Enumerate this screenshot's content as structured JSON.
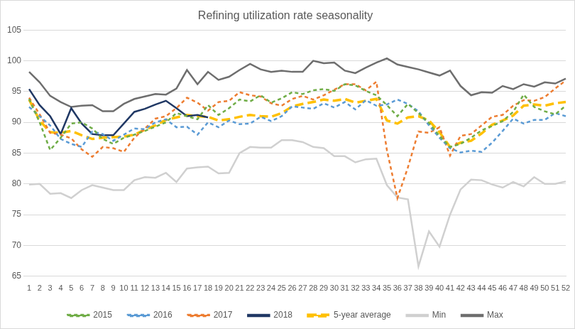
{
  "chart_data": {
    "type": "line",
    "title": "Refining utilization rate seasonality",
    "categories": [
      "1",
      "2",
      "3",
      "4",
      "5",
      "6",
      "7",
      "8",
      "9",
      "10",
      "11",
      "12",
      "13",
      "14",
      "15",
      "16",
      "17",
      "18",
      "19",
      "20",
      "21",
      "22",
      "23",
      "24",
      "25",
      "26",
      "27",
      "28",
      "29",
      "30",
      "31",
      "32",
      "33",
      "34",
      "35",
      "36",
      "37",
      "38",
      "39",
      "40",
      "41",
      "42",
      "43",
      "44",
      "45",
      "46",
      "47",
      "48",
      "49",
      "50",
      "51",
      "52"
    ],
    "ylim": [
      65,
      105
    ],
    "yticks": [
      65,
      70,
      75,
      80,
      85,
      90,
      95,
      100,
      105
    ],
    "grid": true,
    "legend": "bottom",
    "series": [
      {
        "name": "2015",
        "color": "#70ad47",
        "line_style": "dashed",
        "values": [
          93.8,
          90.0,
          85.5,
          87.5,
          89.8,
          90.0,
          89.0,
          87.3,
          86.5,
          87.5,
          88.0,
          88.6,
          89.3,
          90.0,
          91.5,
          91.0,
          90.5,
          92.8,
          91.2,
          92.3,
          93.7,
          93.4,
          94.4,
          93.2,
          93.9,
          94.9,
          94.6,
          95.2,
          95.4,
          95.1,
          96.2,
          96.0,
          95.1,
          94.4,
          92.8,
          91.0,
          93.0,
          91.5,
          89.9,
          87.8,
          86.0,
          86.5,
          87.5,
          88.7,
          89.4,
          90.2,
          91.7,
          94.5,
          92.5,
          91.8,
          91.3,
          92.7
        ]
      },
      {
        "name": "2016",
        "color": "#5b9bd5",
        "line_style": "dashed",
        "values": [
          92.5,
          91.0,
          89.5,
          87.3,
          86.5,
          86.0,
          88.5,
          88.1,
          87.0,
          88.0,
          89.0,
          88.9,
          90.0,
          90.5,
          89.2,
          89.3,
          88.0,
          90.0,
          89.2,
          90.3,
          89.7,
          89.8,
          90.9,
          90.2,
          91.0,
          92.6,
          92.4,
          92.2,
          93.1,
          92.4,
          93.3,
          92.1,
          93.6,
          92.7,
          92.9,
          93.7,
          93.0,
          91.8,
          89.5,
          87.5,
          85.8,
          85.1,
          85.4,
          85.2,
          86.7,
          88.6,
          90.6,
          89.8,
          90.4,
          90.4,
          91.5,
          91.0
        ]
      },
      {
        "name": "2017",
        "color": "#ed7d31",
        "line_style": "dashed",
        "values": [
          94.0,
          91.3,
          88.3,
          88.0,
          87.4,
          85.6,
          84.4,
          86.0,
          85.8,
          85.2,
          87.5,
          89.0,
          90.6,
          91.0,
          92.3,
          94.0,
          93.2,
          91.9,
          93.3,
          93.5,
          94.9,
          94.4,
          94.2,
          93.1,
          92.7,
          93.8,
          94.3,
          93.7,
          94.4,
          95.3,
          96.2,
          96.2,
          95.2,
          96.6,
          85.5,
          77.7,
          82.7,
          88.5,
          88.3,
          89.2,
          84.6,
          87.8,
          88.1,
          89.5,
          90.9,
          91.2,
          92.7,
          93.6,
          93.5,
          94.1,
          95.5,
          96.8
        ]
      },
      {
        "name": "2018",
        "color": "#203864",
        "line_style": "solid",
        "values": [
          95.4,
          92.8,
          91.0,
          88.1,
          92.3,
          89.8,
          88.1,
          87.9,
          87.9,
          89.8,
          91.7,
          92.2,
          92.9,
          93.5,
          92.3,
          91.0,
          91.2,
          90.8,
          null,
          null,
          null,
          null,
          null,
          null,
          null,
          null,
          null,
          null,
          null,
          null,
          null,
          null,
          null,
          null,
          null,
          null,
          null,
          null,
          null,
          null,
          null,
          null,
          null,
          null,
          null,
          null,
          null,
          null,
          null,
          null,
          null,
          null
        ]
      },
      {
        "name": "5-year average",
        "color": "#ffc000",
        "line_style": "long_dash",
        "values": [
          93.7,
          90.3,
          88.4,
          88.3,
          88.6,
          87.9,
          87.3,
          87.5,
          87.6,
          87.7,
          88.0,
          88.8,
          89.5,
          90.4,
          90.8,
          91.2,
          91.0,
          90.9,
          90.3,
          90.5,
          90.9,
          91.2,
          91.0,
          90.9,
          91.5,
          92.6,
          93.0,
          93.3,
          93.7,
          93.5,
          93.8,
          93.2,
          93.5,
          93.8,
          90.3,
          89.8,
          90.8,
          91.0,
          90.3,
          88.4,
          86.0,
          86.7,
          87.0,
          88.2,
          89.6,
          90.3,
          91.1,
          92.7,
          92.9,
          92.7,
          93.1,
          93.3
        ]
      },
      {
        "name": "Min",
        "color": "#d0d0d0",
        "line_style": "solid",
        "values": [
          79.9,
          80.0,
          78.4,
          78.5,
          77.7,
          79.0,
          79.8,
          79.4,
          79.0,
          79.0,
          80.6,
          81.1,
          81.0,
          81.8,
          80.3,
          82.5,
          82.7,
          82.8,
          81.7,
          81.8,
          85.0,
          86.0,
          85.9,
          85.9,
          87.1,
          87.1,
          86.8,
          86.0,
          85.8,
          84.5,
          84.5,
          83.5,
          84.0,
          84.1,
          79.8,
          77.8,
          77.5,
          66.6,
          72.3,
          69.8,
          75.0,
          79.1,
          80.7,
          80.6,
          79.9,
          79.4,
          80.3,
          79.6,
          81.1,
          80.0,
          80.0,
          80.4
        ]
      },
      {
        "name": "Max",
        "color": "#6e6e6e",
        "line_style": "solid",
        "values": [
          98.2,
          96.5,
          94.3,
          93.3,
          92.5,
          92.7,
          92.8,
          91.8,
          91.8,
          93.0,
          93.8,
          94.2,
          94.6,
          94.5,
          95.5,
          98.5,
          96.2,
          98.2,
          96.9,
          97.4,
          98.5,
          99.5,
          98.6,
          98.2,
          98.4,
          98.2,
          98.2,
          100.0,
          99.6,
          99.7,
          98.4,
          98.0,
          98.9,
          99.7,
          100.4,
          99.4,
          99.0,
          98.6,
          98.1,
          97.6,
          98.4,
          95.9,
          94.4,
          94.9,
          94.8,
          95.9,
          95.4,
          96.2,
          95.8,
          96.5,
          96.3,
          97.1
        ]
      }
    ]
  }
}
